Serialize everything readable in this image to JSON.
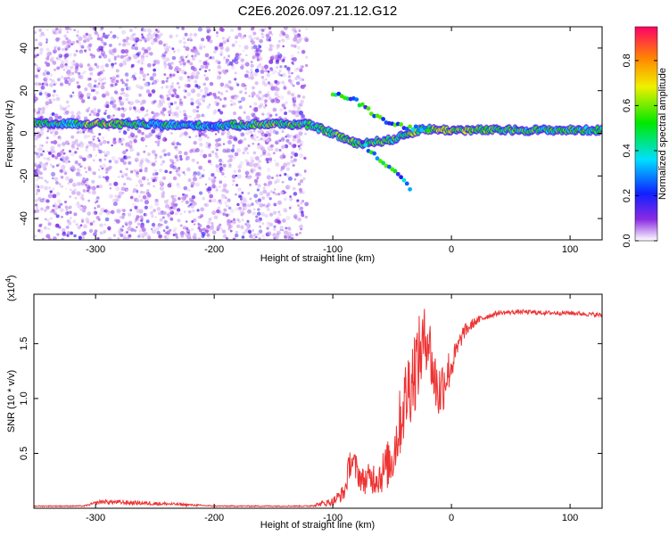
{
  "title": "C2E6.2026.097.21.12.G12",
  "chart_data": [
    {
      "type": "heatmap",
      "xlabel": "Height of straight line (km)",
      "ylabel": "Frequency (Hz)",
      "xlim": [
        -352,
        127
      ],
      "ylim": [
        -50,
        50
      ],
      "x_ticks": [
        -300,
        -200,
        -100,
        0,
        100
      ],
      "y_ticks": [
        -40,
        -20,
        0,
        20,
        40
      ],
      "colorbar": {
        "label": "Normalized spectral amplitude",
        "range": [
          0,
          0.95
        ],
        "ticks": [
          0.0,
          0.2,
          0.4,
          0.6,
          0.8
        ],
        "tick_labels": [
          "0.0",
          "0.2",
          "0.4",
          "0.6",
          "0.8"
        ]
      },
      "main_track": [
        {
          "x": -320,
          "y": 4.5,
          "amp": 0.45
        },
        {
          "x": -300,
          "y": 4.5,
          "amp": 0.62
        },
        {
          "x": -250,
          "y": 4,
          "amp": 0.42
        },
        {
          "x": -200,
          "y": 3.5,
          "amp": 0.35
        },
        {
          "x": -150,
          "y": 4.5,
          "amp": 0.55
        },
        {
          "x": -120,
          "y": 4,
          "amp": 0.5
        },
        {
          "x": -100,
          "y": 0,
          "amp": 0.5
        },
        {
          "x": -80,
          "y": -5,
          "amp": 0.55
        },
        {
          "x": -50,
          "y": -3,
          "amp": 0.5
        },
        {
          "x": -25,
          "y": 2,
          "amp": 0.55
        },
        {
          "x": 0,
          "y": 1.5,
          "amp": 0.62
        },
        {
          "x": 50,
          "y": 1.5,
          "amp": 0.5
        },
        {
          "x": 127,
          "y": 1.5,
          "amp": 0.45
        }
      ],
      "upper_branch": [
        {
          "x": -100,
          "y": 19
        },
        {
          "x": -80,
          "y": 15
        },
        {
          "x": -60,
          "y": 7
        },
        {
          "x": -40,
          "y": 3
        },
        {
          "x": -20,
          "y": 2
        }
      ],
      "lower_branch": [
        {
          "x": -75,
          "y": -5
        },
        {
          "x": -60,
          "y": -12
        },
        {
          "x": -45,
          "y": -20
        },
        {
          "x": -35,
          "y": -26
        }
      ]
    },
    {
      "type": "line",
      "xlabel": "Height of straight line (km)",
      "ylabel": "SNR (10 * v/v)",
      "multiplier": "(x10",
      "multiplier_exp": "4",
      "multiplier_close": ")",
      "xlim": [
        -352,
        127
      ],
      "ylim": [
        0,
        1.95
      ],
      "x_ticks": [
        -300,
        -200,
        -100,
        0,
        100
      ],
      "y_ticks": [
        0.5,
        1.0,
        1.5
      ],
      "y_tick_labels": [
        "0.5",
        "1.0",
        "1.5"
      ],
      "color": "#ee3333",
      "series": [
        {
          "x": [
            -352,
            -310,
            -295,
            -270,
            -240,
            -200,
            -150,
            -120,
            -100,
            -90,
            -85,
            -75,
            -60,
            -50,
            -45,
            -40,
            -35,
            -30,
            -25,
            -20,
            -15,
            -10,
            -5,
            0,
            5,
            10,
            20,
            30,
            40,
            60,
            80,
            100,
            127
          ],
          "y": [
            0.02,
            0.02,
            0.06,
            0.05,
            0.04,
            0.02,
            0.02,
            0.02,
            0.06,
            0.15,
            0.45,
            0.25,
            0.3,
            0.45,
            0.7,
            0.95,
            1.15,
            1.3,
            1.45,
            1.6,
            1.2,
            1.05,
            1.2,
            1.3,
            1.45,
            1.6,
            1.7,
            1.75,
            1.78,
            1.79,
            1.78,
            1.78,
            1.76
          ],
          "noise": [
            0.005,
            0.005,
            0.02,
            0.02,
            0.015,
            0.005,
            0.005,
            0.005,
            0.04,
            0.08,
            0.15,
            0.12,
            0.18,
            0.25,
            0.3,
            0.35,
            0.4,
            0.4,
            0.35,
            0.3,
            0.3,
            0.3,
            0.25,
            0.15,
            0.1,
            0.07,
            0.04,
            0.03,
            0.02,
            0.02,
            0.02,
            0.02,
            0.02
          ]
        }
      ]
    }
  ]
}
